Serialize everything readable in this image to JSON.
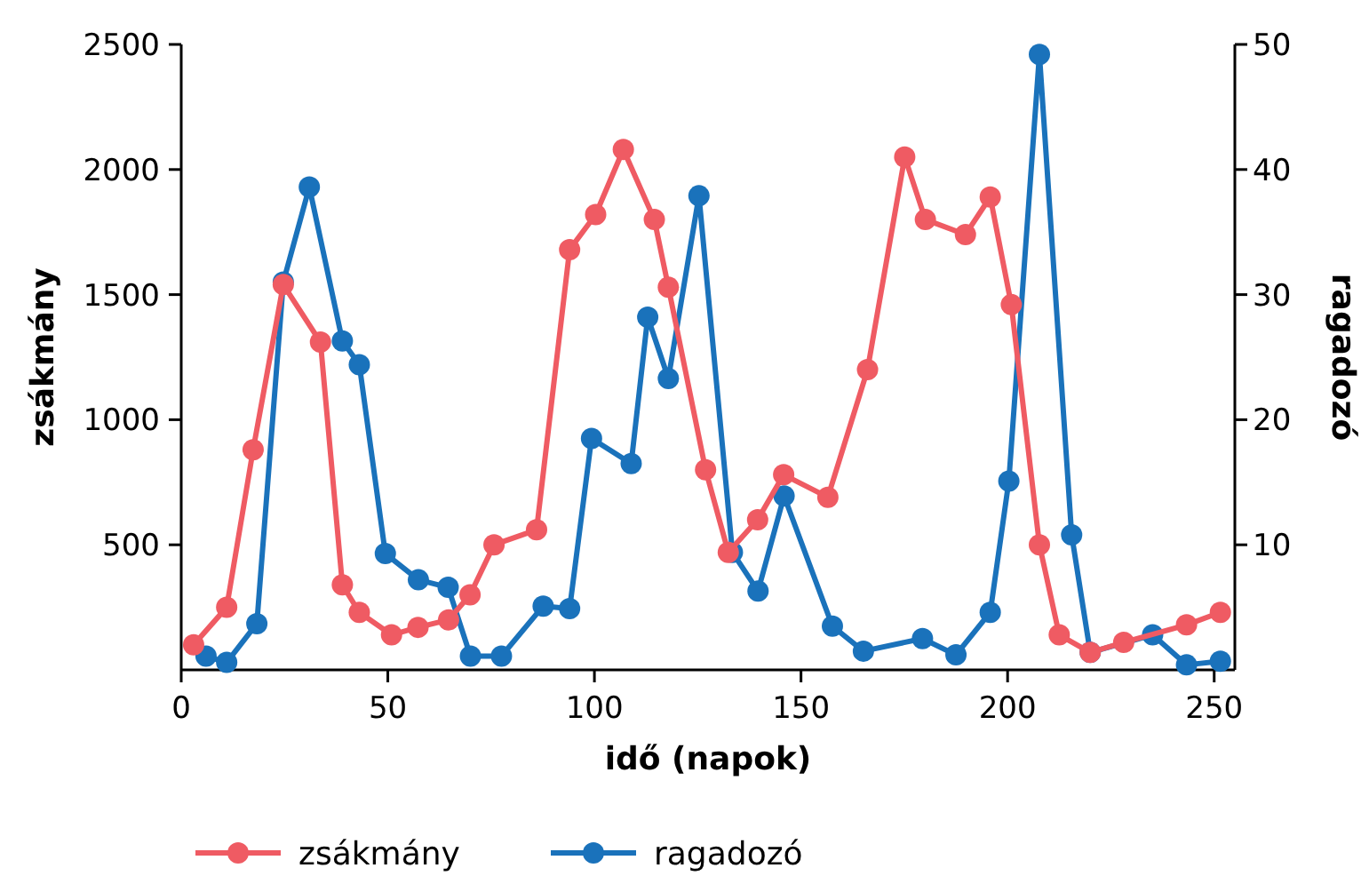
{
  "chart_data": {
    "type": "line",
    "xlabel": "idő (napok)",
    "ylabel": "zsákmány",
    "y2label": "ragadozó",
    "xlim": [
      0,
      255
    ],
    "xticks": [
      0,
      50,
      100,
      150,
      200,
      250
    ],
    "ylim": [
      0,
      2500
    ],
    "yticks": [
      500,
      1000,
      1500,
      2000,
      2500
    ],
    "y2lim": [
      0,
      50
    ],
    "y2ticks": [
      10,
      20,
      30,
      40,
      50
    ],
    "grid": false,
    "legend": "bottom",
    "marker": "circle",
    "line_style": "solid",
    "series": [
      {
        "name": "zsákmány",
        "color": "#ef5b63",
        "x": [
          3,
          11,
          17.4,
          24.7,
          33.7,
          39,
          43.1,
          50.9,
          57.3,
          64.7,
          69.9,
          75.7,
          86,
          94,
          100.3,
          107,
          114.5,
          117.9,
          126.9,
          132.4,
          139.5,
          145.8,
          156.5,
          166.1,
          175.1,
          180.1,
          189.8,
          195.8,
          200.9,
          207.7,
          212.5,
          220,
          228.1,
          243.3,
          251.5
        ],
        "values": [
          100,
          250,
          880,
          1540,
          1310,
          340,
          230,
          140,
          170,
          200,
          300,
          500,
          560,
          1680,
          1820,
          2080,
          1800,
          1530,
          800,
          470,
          600,
          780,
          690,
          1200,
          2050,
          1800,
          1740,
          1890,
          1460,
          500,
          140,
          70,
          110,
          180,
          230
        ]
      },
      {
        "name": "ragadozó",
        "color": "#1a72bb",
        "axis": "y2",
        "x": [
          6,
          11,
          18.3,
          24.7,
          31,
          39,
          43.1,
          49.4,
          57.4,
          64.6,
          70,
          77.5,
          87.6,
          94,
          99.3,
          108.9,
          112.9,
          117.9,
          125.3,
          133.4,
          139.6,
          145.9,
          157.6,
          165.1,
          179.4,
          187.5,
          195.8,
          200.3,
          207.7,
          215.5,
          220,
          235.1,
          243.3,
          251.5
        ],
        "values": [
          1.1,
          0.6,
          3.7,
          31,
          38.6,
          26.3,
          24.4,
          9.3,
          7.2,
          6.6,
          1.1,
          1.1,
          5.1,
          4.9,
          18.5,
          16.5,
          28.2,
          23.3,
          37.9,
          9.4,
          6.3,
          13.9,
          3.5,
          1.5,
          2.5,
          1.2,
          4.6,
          15.1,
          49.2,
          10.8,
          1.4,
          2.8,
          0.4,
          0.7
        ]
      }
    ]
  }
}
